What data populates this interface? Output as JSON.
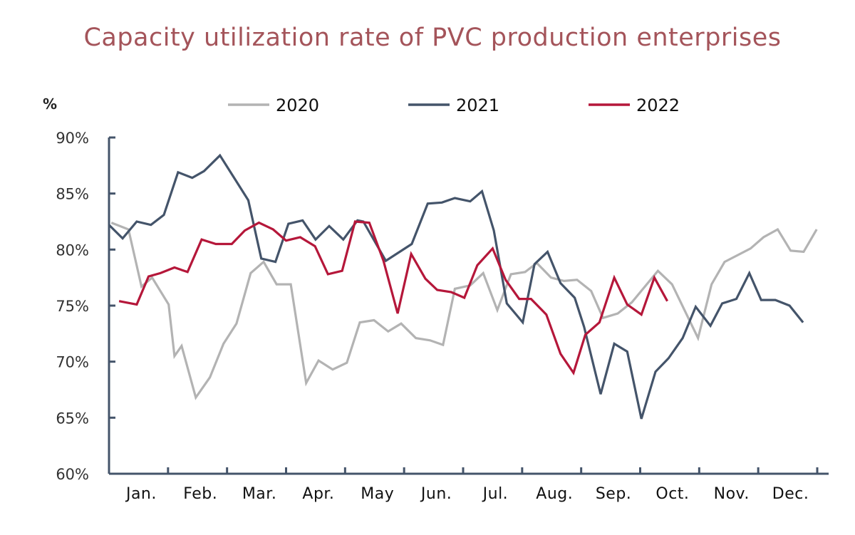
{
  "chart_data": {
    "type": "line",
    "title": "Capacity utilization rate of PVC production enterprises",
    "ylabel": "%",
    "xlabel": "",
    "ylim": [
      60,
      90
    ],
    "xlim": [
      0,
      12
    ],
    "yticks": [
      "60%",
      "65%",
      "70%",
      "75%",
      "80%",
      "85%",
      "90%"
    ],
    "ytick_values": [
      60,
      65,
      70,
      75,
      80,
      85,
      90
    ],
    "categories": [
      "Jan.",
      "Feb.",
      "Mar.",
      "Apr.",
      "May",
      "Jun.",
      "Jul.",
      "Aug.",
      "Sep.",
      "Oct.",
      "Nov.",
      "Dec."
    ],
    "grid": false,
    "legend_position": "top",
    "series": [
      {
        "name": "2020",
        "color": "#b3b3b3",
        "points": [
          [
            0.04,
            82.4
          ],
          [
            0.33,
            81.8
          ],
          [
            0.55,
            76.7
          ],
          [
            0.73,
            77.5
          ],
          [
            1.01,
            75.1
          ],
          [
            1.11,
            70.5
          ],
          [
            1.23,
            71.4
          ],
          [
            1.47,
            66.8
          ],
          [
            1.71,
            68.6
          ],
          [
            1.94,
            71.6
          ],
          [
            2.16,
            73.4
          ],
          [
            2.4,
            77.9
          ],
          [
            2.62,
            78.9
          ],
          [
            2.84,
            76.9
          ],
          [
            3.08,
            76.9
          ],
          [
            3.34,
            68.1
          ],
          [
            3.55,
            70.1
          ],
          [
            3.79,
            69.3
          ],
          [
            4.03,
            69.9
          ],
          [
            4.25,
            73.5
          ],
          [
            4.49,
            73.7
          ],
          [
            4.73,
            72.7
          ],
          [
            4.95,
            73.4
          ],
          [
            5.2,
            72.1
          ],
          [
            5.44,
            71.9
          ],
          [
            5.66,
            71.5
          ],
          [
            5.86,
            76.5
          ],
          [
            6.12,
            76.8
          ],
          [
            6.34,
            77.9
          ],
          [
            6.58,
            74.6
          ],
          [
            6.81,
            77.8
          ],
          [
            7.05,
            78.0
          ],
          [
            7.25,
            78.8
          ],
          [
            7.49,
            77.5
          ],
          [
            7.71,
            77.2
          ],
          [
            7.93,
            77.3
          ],
          [
            8.17,
            76.3
          ],
          [
            8.37,
            73.9
          ],
          [
            8.62,
            74.3
          ],
          [
            8.86,
            75.3
          ],
          [
            9.3,
            78.1
          ],
          [
            9.54,
            76.9
          ],
          [
            9.98,
            72.1
          ],
          [
            10.21,
            76.9
          ],
          [
            10.43,
            78.9
          ],
          [
            10.87,
            80.1
          ],
          [
            11.09,
            81.1
          ],
          [
            11.33,
            81.8
          ],
          [
            11.55,
            79.9
          ],
          [
            11.77,
            79.8
          ],
          [
            11.99,
            81.8
          ]
        ]
      },
      {
        "name": "2021",
        "color": "#44546a",
        "points": [
          [
            0.0,
            82.2
          ],
          [
            0.23,
            81.0
          ],
          [
            0.47,
            82.5
          ],
          [
            0.71,
            82.2
          ],
          [
            0.93,
            83.1
          ],
          [
            1.17,
            86.9
          ],
          [
            1.41,
            86.4
          ],
          [
            1.61,
            87.0
          ],
          [
            1.88,
            88.4
          ],
          [
            2.12,
            86.4
          ],
          [
            2.36,
            84.4
          ],
          [
            2.58,
            79.2
          ],
          [
            2.82,
            78.9
          ],
          [
            3.04,
            82.3
          ],
          [
            3.28,
            82.6
          ],
          [
            3.5,
            80.9
          ],
          [
            3.73,
            82.1
          ],
          [
            3.97,
            80.9
          ],
          [
            4.21,
            82.6
          ],
          [
            4.31,
            82.5
          ],
          [
            4.69,
            79.0
          ],
          [
            5.13,
            80.5
          ],
          [
            5.4,
            84.1
          ],
          [
            5.64,
            84.2
          ],
          [
            5.86,
            84.6
          ],
          [
            6.12,
            84.3
          ],
          [
            6.32,
            85.2
          ],
          [
            6.52,
            81.7
          ],
          [
            6.74,
            75.2
          ],
          [
            7.01,
            73.5
          ],
          [
            7.21,
            78.7
          ],
          [
            7.43,
            79.8
          ],
          [
            7.65,
            77.0
          ],
          [
            7.89,
            75.7
          ],
          [
            8.05,
            73.1
          ],
          [
            8.33,
            67.1
          ],
          [
            8.56,
            71.6
          ],
          [
            8.78,
            70.9
          ],
          [
            9.02,
            64.9
          ],
          [
            9.26,
            69.1
          ],
          [
            9.48,
            70.3
          ],
          [
            9.72,
            72.1
          ],
          [
            9.94,
            74.9
          ],
          [
            10.19,
            73.2
          ],
          [
            10.39,
            75.2
          ],
          [
            10.63,
            75.6
          ],
          [
            10.85,
            77.9
          ],
          [
            11.05,
            75.5
          ],
          [
            11.29,
            75.5
          ],
          [
            11.53,
            75.0
          ],
          [
            11.76,
            73.5
          ]
        ]
      },
      {
        "name": "2022",
        "color": "#b5173a",
        "points": [
          [
            0.17,
            75.4
          ],
          [
            0.47,
            75.1
          ],
          [
            0.67,
            77.6
          ],
          [
            0.87,
            77.9
          ],
          [
            1.11,
            78.4
          ],
          [
            1.33,
            78.0
          ],
          [
            1.57,
            80.9
          ],
          [
            1.81,
            80.5
          ],
          [
            2.08,
            80.5
          ],
          [
            2.3,
            81.7
          ],
          [
            2.54,
            82.4
          ],
          [
            2.78,
            81.8
          ],
          [
            3.0,
            80.8
          ],
          [
            3.24,
            81.1
          ],
          [
            3.49,
            80.3
          ],
          [
            3.71,
            77.8
          ],
          [
            3.95,
            78.1
          ],
          [
            4.17,
            82.5
          ],
          [
            4.41,
            82.4
          ],
          [
            4.65,
            79.0
          ],
          [
            4.89,
            74.3
          ],
          [
            5.12,
            79.6
          ],
          [
            5.36,
            77.4
          ],
          [
            5.56,
            76.4
          ],
          [
            5.8,
            76.2
          ],
          [
            6.02,
            75.7
          ],
          [
            6.24,
            78.6
          ],
          [
            6.5,
            80.1
          ],
          [
            6.72,
            77.3
          ],
          [
            6.95,
            75.6
          ],
          [
            7.15,
            75.6
          ],
          [
            7.41,
            74.2
          ],
          [
            7.65,
            70.7
          ],
          [
            7.87,
            69.0
          ],
          [
            8.07,
            72.4
          ],
          [
            8.31,
            73.5
          ],
          [
            8.56,
            77.5
          ],
          [
            8.78,
            75.1
          ],
          [
            9.02,
            74.2
          ],
          [
            9.24,
            77.5
          ],
          [
            9.46,
            75.4
          ]
        ]
      }
    ]
  }
}
